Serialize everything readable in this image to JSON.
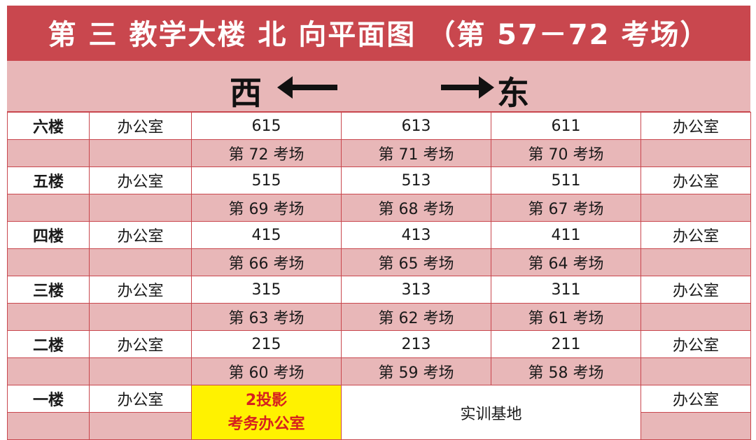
{
  "title": "第 三 教学大楼 北 向平面图  （第 57－72 考场）",
  "direction": {
    "west": "西",
    "east": "东"
  },
  "floors": [
    {
      "floor": "六楼",
      "office_left": "办公室",
      "rooms": [
        "615",
        "613",
        "611"
      ],
      "office_right": "办公室",
      "exams": [
        "第 72 考场",
        "第 71 考场",
        "第 70 考场"
      ]
    },
    {
      "floor": "五楼",
      "office_left": "办公室",
      "rooms": [
        "515",
        "513",
        "511"
      ],
      "office_right": "办公室",
      "exams": [
        "第 69 考场",
        "第 68 考场",
        "第 67 考场"
      ]
    },
    {
      "floor": "四楼",
      "office_left": "办公室",
      "rooms": [
        "415",
        "413",
        "411"
      ],
      "office_right": "办公室",
      "exams": [
        "第 66 考场",
        "第 65 考场",
        "第 64 考场"
      ]
    },
    {
      "floor": "三楼",
      "office_left": "办公室",
      "rooms": [
        "315",
        "313",
        "311"
      ],
      "office_right": "办公室",
      "exams": [
        "第 63 考场",
        "第 62 考场",
        "第 61 考场"
      ]
    },
    {
      "floor": "二楼",
      "office_left": "办公室",
      "rooms": [
        "215",
        "213",
        "211"
      ],
      "office_right": "办公室",
      "exams": [
        "第 60 考场",
        "第 59 考场",
        "第 58 考场"
      ]
    }
  ],
  "ground_floor": {
    "floor": "一楼",
    "office_left": "办公室",
    "special_line1": "2投影",
    "special_line2": "考务办公室",
    "training": "实训基地",
    "office_right": "办公室"
  },
  "colors": {
    "header_red": "#c9474e",
    "band_pink": "#e8b7b8",
    "highlight_yellow": "#fff200",
    "highlight_text": "#d6201f"
  }
}
